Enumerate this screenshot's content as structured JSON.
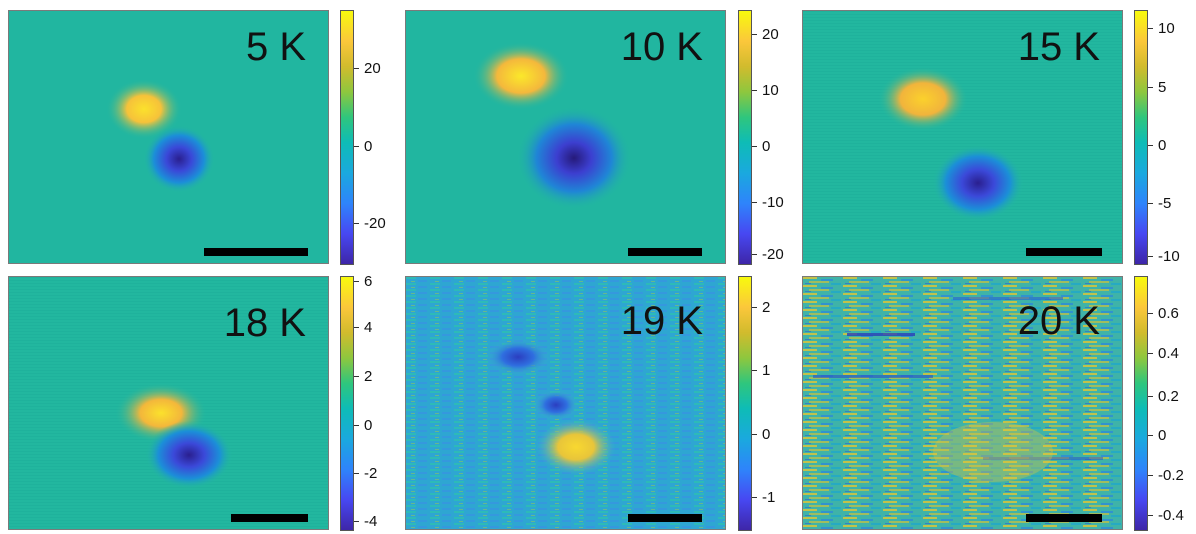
{
  "panels": [
    {
      "label": "5 K",
      "colorbar_ticks": [
        "20",
        "0",
        "-20"
      ]
    },
    {
      "label": "10 K",
      "colorbar_ticks": [
        "20",
        "10",
        "0",
        "-10",
        "-20"
      ]
    },
    {
      "label": "15 K",
      "colorbar_ticks": [
        "10",
        "5",
        "0",
        "-5",
        "-10"
      ]
    },
    {
      "label": "18 K",
      "colorbar_ticks": [
        "6",
        "4",
        "2",
        "0",
        "-2",
        "-4"
      ]
    },
    {
      "label": "19 K",
      "colorbar_ticks": [
        "2",
        "1",
        "0",
        "-1"
      ]
    },
    {
      "label": "20 K",
      "colorbar_ticks": [
        "0.6",
        "0.4",
        "0.2",
        "0",
        "-0.2",
        "-0.4"
      ]
    }
  ],
  "colors": {
    "background_map": "#1fb59f",
    "positive_peak": "#f6d32b",
    "negative_peak": "#3e26a8",
    "scalebar": "#000000"
  },
  "colormap": "parula"
}
